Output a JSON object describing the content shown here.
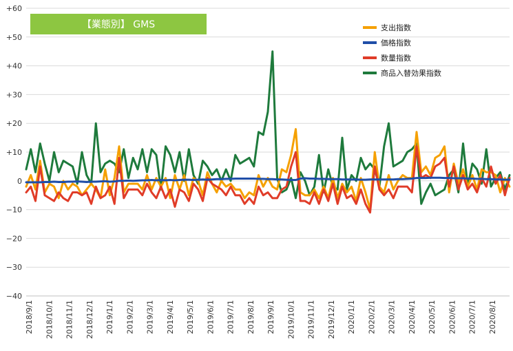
{
  "chart_data": {
    "type": "line",
    "title": "【業態別】 GMS",
    "title_bg_color": "#8dc641",
    "ylim": [
      -40,
      60
    ],
    "yticks": [
      60,
      50,
      40,
      30,
      20,
      10,
      0,
      -10,
      -20,
      -30,
      -40
    ],
    "ytick_labels": [
      "+60",
      "+50",
      "+40",
      "+30",
      "+20",
      "+10",
      "0",
      "−10",
      "−20",
      "−30",
      "−40"
    ],
    "xtick_labels": [
      "2018/9/1",
      "2018/10/1",
      "2018/11/1",
      "2018/12/1",
      "2019/1/1",
      "2019/2/1",
      "2019/3/1",
      "2019/4/1",
      "2019/5/1",
      "2019/6/1",
      "2019/7/1",
      "2019/8/1",
      "2019/9/1",
      "2019/10/1",
      "2019/11/1",
      "2019/12/1",
      "2020/1/1",
      "2020/2/1",
      "2020/3/1",
      "2020/4/1",
      "2020/5/1",
      "2020/6/1",
      "2020/7/1",
      "2020/8/1"
    ],
    "n_points": 105,
    "grid": "horizontal",
    "legend_position": "top-right",
    "series": [
      {
        "name": "支出指数",
        "color": "#f5a000",
        "values": [
          -2,
          2,
          -3,
          7,
          -4,
          -1,
          -2,
          -6,
          0,
          -3,
          -1,
          -2,
          -5,
          -3,
          -1,
          -3,
          -6,
          4,
          -5,
          1,
          12,
          -4,
          -1,
          -1,
          -1,
          -3,
          2,
          -3,
          1,
          -2,
          1,
          -6,
          2,
          -3,
          2,
          -5,
          1,
          0,
          -5,
          3,
          -1,
          -4,
          0,
          -2,
          -1,
          -3,
          -3,
          -6,
          -4,
          -5,
          2,
          -2,
          1,
          -2,
          -3,
          4,
          3,
          9,
          18,
          -4,
          -5,
          -5,
          -3,
          -6,
          -2,
          -6,
          1,
          -6,
          -1,
          -4,
          -2,
          -7,
          1,
          -4,
          -10,
          10,
          -2,
          -4,
          2,
          -3,
          0,
          2,
          1,
          1,
          17,
          3,
          5,
          2,
          8,
          9,
          12,
          -4,
          6,
          -1,
          4,
          -2,
          2,
          -3,
          4,
          3,
          3,
          2,
          -4,
          1,
          -2
        ]
      },
      {
        "name": "価格指数",
        "color": "#1f4ea8",
        "values": [
          -0.5,
          -0.5,
          -0.5,
          -0.5,
          -0.4,
          -0.4,
          -0.3,
          -0.4,
          -0.4,
          -0.3,
          -0.3,
          -0.2,
          -0.3,
          -0.4,
          -0.3,
          -0.3,
          -0.2,
          -0.1,
          -0.3,
          -0.2,
          0,
          0,
          0.1,
          0,
          0.1,
          0.2,
          0.2,
          0.3,
          0.2,
          0.3,
          0.2,
          0.3,
          0.2,
          0.3,
          0.4,
          0.4,
          0.3,
          0.4,
          0.5,
          0.4,
          0.5,
          0.6,
          0.6,
          0.7,
          0.7,
          0.8,
          0.8,
          0.8,
          0.8,
          0.8,
          0.7,
          0.7,
          0.6,
          0.6,
          0.5,
          0.5,
          0.4,
          0.3,
          0.3,
          0.8,
          0.9,
          0.8,
          0.8,
          0.7,
          0.7,
          0.6,
          0.6,
          0.6,
          0.5,
          0.5,
          0.5,
          0.5,
          0.4,
          0.4,
          0.5,
          0.5,
          0.5,
          0.5,
          0.5,
          0.5,
          0.6,
          0.6,
          0.7,
          0.8,
          1,
          1,
          1,
          1.1,
          1.1,
          1.1,
          1,
          1,
          0.9,
          0.9,
          0.9,
          0.8,
          0.8,
          0.7,
          0.7,
          0.6,
          0.6,
          0.5,
          0.5,
          0.4,
          0.4
        ]
      },
      {
        "name": "数量指数",
        "color": "#e03c28",
        "values": [
          -4,
          -2,
          -7,
          5,
          -5,
          -6,
          -7,
          -4,
          -6,
          -7,
          -4,
          -4,
          -5,
          -4,
          -8,
          -2,
          -6,
          -5,
          -2,
          -8,
          8,
          -6,
          -3,
          -3,
          -3,
          -5,
          -1,
          -4,
          -6,
          -2,
          -6,
          -3,
          -9,
          -3,
          -4,
          -7,
          -1,
          -3,
          -7,
          1,
          -1,
          -2,
          -3,
          -5,
          -2,
          -5,
          -5,
          -8,
          -6,
          -8,
          -2,
          -5,
          -4,
          -6,
          -6,
          -3,
          -2,
          5,
          10,
          -7,
          -7,
          -8,
          -4,
          -8,
          -3,
          -7,
          -1,
          -8,
          -2,
          -6,
          -5,
          -8,
          -3,
          -8,
          -11,
          5,
          -3,
          -5,
          -3,
          -6,
          -2,
          -2,
          -2,
          -4,
          12,
          1,
          2,
          1,
          5,
          6,
          8,
          -2,
          5,
          -3,
          2,
          -3,
          -1,
          -4,
          1,
          -2,
          5,
          -1,
          2,
          -5,
          1
        ]
      },
      {
        "name": "商品入替効果指数",
        "color": "#1e7a3c",
        "values": [
          4,
          11,
          3,
          13,
          6,
          0,
          10,
          3,
          7,
          6,
          5,
          -1,
          10,
          2,
          -1,
          20,
          3,
          6,
          7,
          6,
          3,
          11,
          1,
          8,
          4,
          11,
          3,
          11,
          9,
          -3,
          12,
          9,
          3,
          10,
          0,
          11,
          2,
          -1,
          7,
          5,
          2,
          4,
          0,
          4,
          0,
          9,
          6,
          7,
          8,
          5,
          17,
          16,
          24,
          45,
          1,
          -4,
          -3,
          1,
          -6,
          3,
          0,
          -5,
          -2,
          9,
          -4,
          4,
          -2,
          -3,
          15,
          -3,
          2,
          0,
          8,
          4,
          6,
          4,
          -2,
          12,
          20,
          5,
          6,
          7,
          10,
          11,
          13,
          -8,
          -4,
          -1,
          -5,
          -4,
          -3,
          2,
          4,
          -4,
          13,
          -2,
          6,
          4,
          -1,
          11,
          -2,
          1,
          3,
          -3,
          2
        ]
      }
    ]
  }
}
